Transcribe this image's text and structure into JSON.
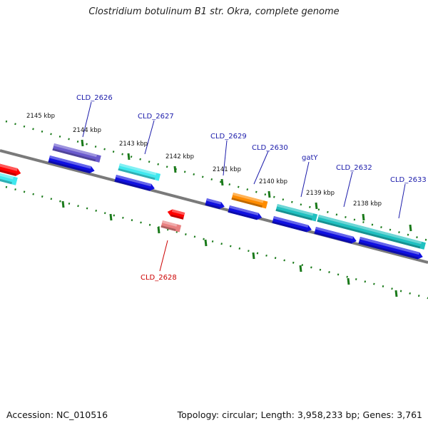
{
  "title": "Clostridium botulinum B1 str. Okra, complete genome",
  "footer": {
    "accession": "Accession: NC_010516",
    "topology": "Topology: circular; Length: 3,958,233 bp; Genes: 3,761"
  },
  "colors": {
    "backbone": "#7a7a7a",
    "tick": "#1a7a1a",
    "label_forward": "#1a1aaa",
    "label_reverse": "#cc0000",
    "cds": "#1010e0",
    "gene_cyan": "#40e8ee",
    "gene_purple": "#6a5acd",
    "gene_orange": "#ff8c00",
    "gene_teal": "#20c0c0",
    "gene_red": "#ff0000",
    "gene_pink": "#e88080"
  },
  "kbp_ticks": [
    "2145 kbp",
    "2144 kbp",
    "2143 kbp",
    "2142 kbp",
    "2141 kbp",
    "2140 kbp",
    "2139 kbp",
    "2138 kbp"
  ],
  "gene_labels": [
    {
      "text": "CLD_2626",
      "strand": "forward"
    },
    {
      "text": "CLD_2627",
      "strand": "forward"
    },
    {
      "text": "CLD_2629",
      "strand": "forward"
    },
    {
      "text": "CLD_2630",
      "strand": "forward"
    },
    {
      "text": "gatY",
      "strand": "forward"
    },
    {
      "text": "CLD_2632",
      "strand": "forward"
    },
    {
      "text": "CLD_2633",
      "strand": "forward"
    },
    {
      "text": "CLD_2628",
      "strand": "reverse"
    }
  ]
}
